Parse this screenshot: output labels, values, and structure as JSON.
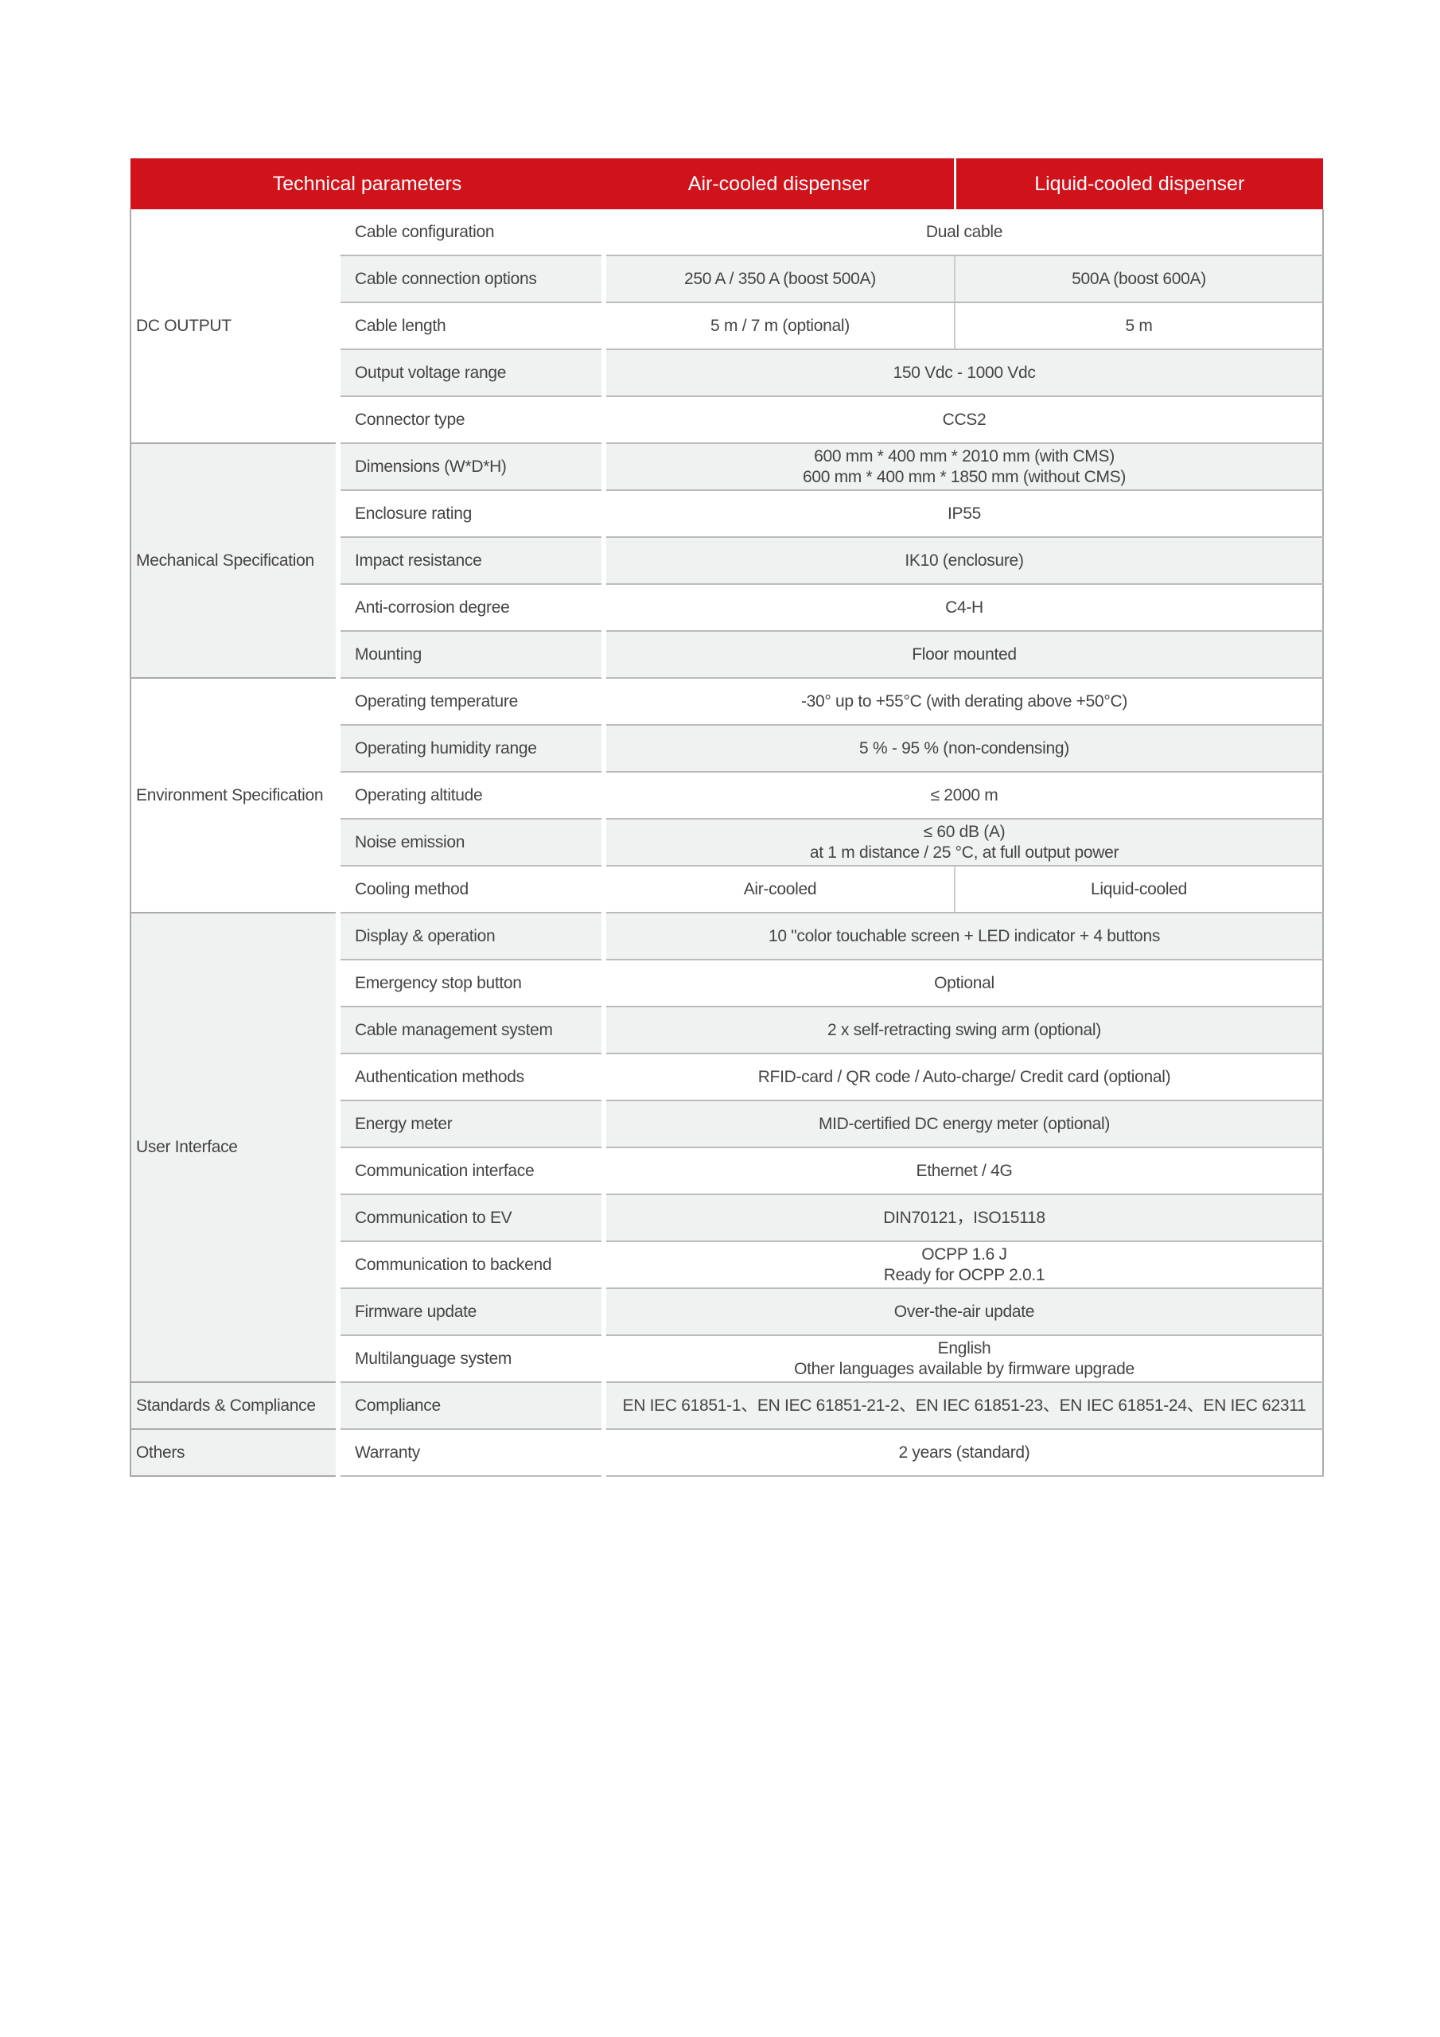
{
  "header": {
    "technical_parameters": "Technical parameters",
    "air_cooled": "Air-cooled dispenser",
    "liquid_cooled": "Liquid-cooled dispenser"
  },
  "colors": {
    "header_red": "#d0121b",
    "row_grey": "#f0f1f1"
  },
  "groups": [
    {
      "name": "DC  OUTPUT",
      "shade": "w",
      "rows": [
        {
          "param": "Cable configuration",
          "value": "Dual cable"
        },
        {
          "param": "Cable connection options",
          "air": "250 A / 350 A (boost 500A)",
          "liquid": "500A (boost 600A)"
        },
        {
          "param": "Cable length",
          "air": "5 m / 7  m (optional)",
          "liquid": "5 m"
        },
        {
          "param": "Output voltage range",
          "value": "150 Vdc - 1000 Vdc"
        },
        {
          "param": "Connector type",
          "value": "CCS2"
        }
      ]
    },
    {
      "name": "Mechanical Specification",
      "shade": "g",
      "rows": [
        {
          "param": "Dimensions (W*D*H)",
          "value": "600  mm *  400 mm *  2010 mm (with CMS)\n600  mm *  400 mm *  1850 mm (without CMS)"
        },
        {
          "param": "Enclosure rating",
          "value": "IP55"
        },
        {
          "param": "Impact resistance",
          "value": "IK10 (enclosure)"
        },
        {
          "param": "Anti-corrosion degree",
          "value": "C4-H"
        },
        {
          "param": "Mounting",
          "value": "Floor mounted"
        }
      ]
    },
    {
      "name": "Environment Specification",
      "shade": "w",
      "rows": [
        {
          "param": "Operating temperature",
          "value": "-30° up to +55°C (with derating above +50°C)"
        },
        {
          "param": "Operating humidity range",
          "value": "5 % - 95 % (non-condensing)"
        },
        {
          "param": "Operating altitude",
          "value": "≤ 2000 m"
        },
        {
          "param": "Noise emission",
          "value": "≤ 60 dB (A)\nat 1 m distance / 25 °C, at full output power"
        },
        {
          "param": "Cooling method",
          "air": "Air-cooled",
          "liquid": "Liquid-cooled"
        }
      ]
    },
    {
      "name": "User Interface",
      "shade": "g",
      "rows": [
        {
          "param": "Display & operation",
          "value": "10 \"color touchable screen +  LED indicator + 4 buttons"
        },
        {
          "param": "Emergency stop button",
          "value": "Optional"
        },
        {
          "param": "Cable management system",
          "value": "2 x  self-retracting swing arm (optional)"
        },
        {
          "param": "Authentication methods",
          "value": "RFID-card / QR code / Auto-charge/ Credit card (optional)"
        },
        {
          "param": "Energy meter",
          "value": "MID-certified DC energy meter (optional)"
        },
        {
          "param": "Communication interface",
          "value": "Ethernet / 4G"
        },
        {
          "param": "Communication to EV",
          "value": "DIN70121，ISO15118"
        },
        {
          "param": "Communication to backend",
          "value": "OCPP 1.6 J\nReady for OCPP 2.0.1"
        },
        {
          "param": "Firmware update",
          "value": "Over-the-air update"
        },
        {
          "param": "Multilanguage system",
          "value": "English\nOther languages available by firmware upgrade"
        }
      ]
    },
    {
      "name": "Standards & Compliance",
      "shade": "g",
      "rows": [
        {
          "param": "Compliance",
          "value": "EN IEC 61851-1、EN IEC 61851-21-2、EN IEC 61851-23、EN IEC 61851-24、EN IEC 62311"
        }
      ]
    },
    {
      "name": "Others",
      "shade": "g",
      "rows": [
        {
          "param": "Warranty",
          "value": "2 years (standard)"
        }
      ]
    }
  ]
}
